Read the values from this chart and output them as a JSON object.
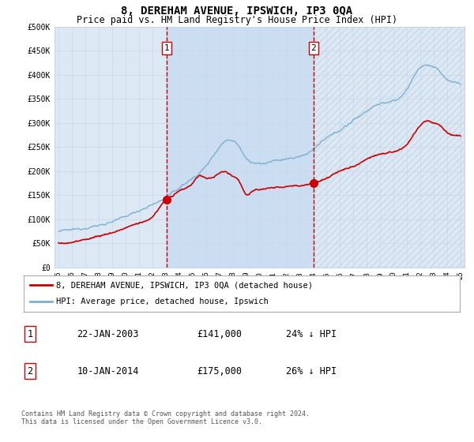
{
  "title": "8, DEREHAM AVENUE, IPSWICH, IP3 0QA",
  "subtitle": "Price paid vs. HM Land Registry's House Price Index (HPI)",
  "title_fontsize": 10,
  "subtitle_fontsize": 8.5,
  "plot_bg_color": "#dce9f5",
  "ylim": [
    0,
    500000
  ],
  "yticks": [
    0,
    50000,
    100000,
    150000,
    200000,
    250000,
    300000,
    350000,
    400000,
    450000,
    500000
  ],
  "ytick_labels": [
    "£0",
    "£50K",
    "£100K",
    "£150K",
    "£200K",
    "£250K",
    "£300K",
    "£350K",
    "£400K",
    "£450K",
    "£500K"
  ],
  "xlim_start": 1994.7,
  "xlim_end": 2025.3,
  "xtick_years": [
    1995,
    1996,
    1997,
    1998,
    1999,
    2000,
    2001,
    2002,
    2003,
    2004,
    2005,
    2006,
    2007,
    2008,
    2009,
    2010,
    2011,
    2012,
    2013,
    2014,
    2015,
    2016,
    2017,
    2018,
    2019,
    2020,
    2021,
    2022,
    2023,
    2024,
    2025
  ],
  "hpi_color": "#7bafd4",
  "sale_color": "#cc0000",
  "marker1_year": 2003.06,
  "marker1_value": 141000,
  "marker2_year": 2014.03,
  "marker2_value": 175000,
  "legend_entries": [
    "8, DEREHAM AVENUE, IPSWICH, IP3 0QA (detached house)",
    "HPI: Average price, detached house, Ipswich"
  ],
  "table_entries": [
    {
      "num": "1",
      "date": "22-JAN-2003",
      "price": "£141,000",
      "hpi": "24% ↓ HPI"
    },
    {
      "num": "2",
      "date": "10-JAN-2014",
      "price": "£175,000",
      "hpi": "26% ↓ HPI"
    }
  ],
  "footer_text": "Contains HM Land Registry data © Crown copyright and database right 2024.\nThis data is licensed under the Open Government Licence v3.0.",
  "grid_color": "#c8d8e8",
  "marker_box_color": "#cc0000",
  "shade_color": "#c5d8ee",
  "hatch_color": "#b8c8d8"
}
